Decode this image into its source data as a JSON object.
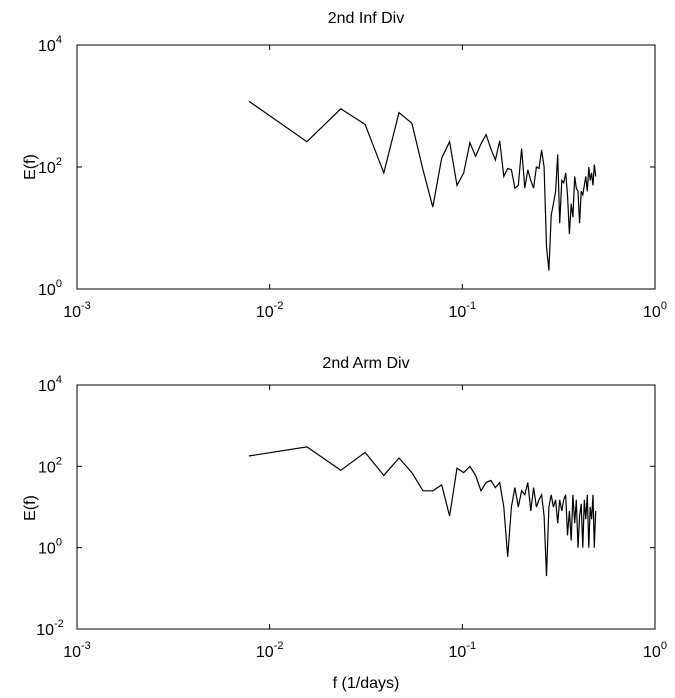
{
  "chart_data": [
    {
      "type": "line",
      "title": "2nd Inf Div",
      "ylabel": "E(f)",
      "xlabel": "",
      "xscale": "log",
      "yscale": "log",
      "xlim": [
        0.001,
        1
      ],
      "ylim": [
        1,
        10000
      ],
      "x_ticks": [
        {
          "base": "10",
          "exp": "-3"
        },
        {
          "base": "10",
          "exp": "-2"
        },
        {
          "base": "10",
          "exp": "-1"
        },
        {
          "base": "10",
          "exp": "0"
        }
      ],
      "y_ticks": [
        {
          "base": "10",
          "exp": "0"
        },
        {
          "base": "10",
          "exp": "2"
        },
        {
          "base": "10",
          "exp": "4"
        }
      ],
      "grid": false,
      "series": [
        {
          "color": "#000000",
          "x": [
            0.0078,
            0.0156,
            0.0234,
            0.0313,
            0.0391,
            0.0469,
            0.0547,
            0.0625,
            0.0703,
            0.0781,
            0.0859,
            0.0938,
            0.1016,
            0.1094,
            0.1172,
            0.125,
            0.1328,
            0.1406,
            0.1484,
            0.1563,
            0.1641,
            0.1719,
            0.1797,
            0.1875,
            0.1953,
            0.2031,
            0.2109,
            0.2188,
            0.2266,
            0.2344,
            0.2422,
            0.25,
            0.2578,
            0.2656,
            0.2734,
            0.2813,
            0.2891,
            0.2969,
            0.3047,
            0.3125,
            0.3203,
            0.3281,
            0.3359,
            0.3438,
            0.3516,
            0.3594,
            0.3672,
            0.375,
            0.3828,
            0.3906,
            0.3984,
            0.4063,
            0.4141,
            0.4219,
            0.4297,
            0.4375,
            0.4453,
            0.4531,
            0.4609,
            0.4688,
            0.4766,
            0.4844,
            0.4922
          ],
          "y": [
            1200,
            260,
            900,
            500,
            80,
            780,
            520,
            90,
            22,
            140,
            260,
            50,
            80,
            250,
            150,
            240,
            340,
            200,
            130,
            270,
            70,
            95,
            90,
            45,
            50,
            200,
            45,
            90,
            60,
            45,
            100,
            95,
            190,
            100,
            5,
            2,
            16,
            25,
            40,
            160,
            12,
            60,
            55,
            80,
            35,
            8,
            25,
            15,
            70,
            45,
            40,
            12,
            40,
            35,
            50,
            70,
            40,
            100,
            60,
            80,
            50,
            110,
            70
          ]
        }
      ]
    },
    {
      "type": "line",
      "title": "2nd Arm Div",
      "ylabel": "E(f)",
      "xlabel": "f (1/days)",
      "xscale": "log",
      "yscale": "log",
      "xlim": [
        0.001,
        1
      ],
      "ylim": [
        0.01,
        10000
      ],
      "x_ticks": [
        {
          "base": "10",
          "exp": "-3"
        },
        {
          "base": "10",
          "exp": "-2"
        },
        {
          "base": "10",
          "exp": "-1"
        },
        {
          "base": "10",
          "exp": "0"
        }
      ],
      "y_ticks": [
        {
          "base": "10",
          "exp": "-2"
        },
        {
          "base": "10",
          "exp": "0"
        },
        {
          "base": "10",
          "exp": "2"
        },
        {
          "base": "10",
          "exp": "4"
        }
      ],
      "grid": false,
      "series": [
        {
          "color": "#000000",
          "x": [
            0.0078,
            0.0156,
            0.0234,
            0.0313,
            0.0391,
            0.0469,
            0.0547,
            0.0625,
            0.0703,
            0.0781,
            0.0859,
            0.0938,
            0.1016,
            0.1094,
            0.1172,
            0.125,
            0.1328,
            0.1406,
            0.1484,
            0.1563,
            0.1641,
            0.1719,
            0.1797,
            0.1875,
            0.1953,
            0.2031,
            0.2109,
            0.2188,
            0.2266,
            0.2344,
            0.2422,
            0.25,
            0.2578,
            0.2656,
            0.2734,
            0.2813,
            0.2891,
            0.2969,
            0.3047,
            0.3125,
            0.3203,
            0.3281,
            0.3359,
            0.3438,
            0.3516,
            0.3594,
            0.3672,
            0.375,
            0.3828,
            0.3906,
            0.3984,
            0.4063,
            0.4141,
            0.4219,
            0.4297,
            0.4375,
            0.4453,
            0.4531,
            0.4609,
            0.4688,
            0.4766,
            0.4844,
            0.4922
          ],
          "y": [
            180,
            300,
            80,
            220,
            60,
            160,
            70,
            25,
            25,
            35,
            6,
            90,
            70,
            100,
            60,
            25,
            40,
            45,
            30,
            40,
            10,
            0.6,
            10,
            30,
            10,
            25,
            20,
            40,
            8,
            30,
            10,
            15,
            20,
            6,
            0.2,
            10,
            20,
            10,
            15,
            4,
            15,
            8,
            15,
            20,
            2,
            8,
            1.5,
            20,
            4,
            15,
            1,
            6,
            12,
            1,
            15,
            5,
            20,
            1,
            10,
            5,
            20,
            1,
            8
          ]
        }
      ]
    }
  ]
}
